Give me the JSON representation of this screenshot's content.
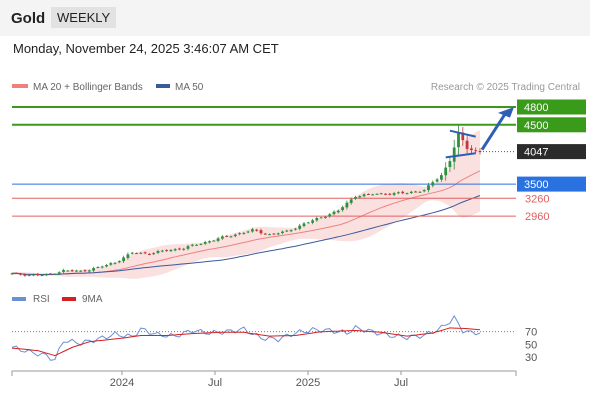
{
  "header": {
    "instrument": "Gold",
    "timeframe": "WEEKLY",
    "datetime": "Monday, November 24, 2025 3:46:07 AM CET"
  },
  "legend": {
    "ma20_label": "MA 20 + Bollinger Bands",
    "ma50_label": "MA 50",
    "credit": "Research © 2025 Trading Central",
    "rsi_label": "RSI",
    "ma9_label": "9MA"
  },
  "colors": {
    "ma20": "#f08080",
    "ma50": "#3a5a9a",
    "band_fill": "#fbe0e0",
    "up_candle": "#2f8f3f",
    "down_candle": "#c03838",
    "resistance": "#3a9a1a",
    "pivot": "#2a72e0",
    "support": "#e06060",
    "current": "#2b2b2b",
    "rsi": "#6a90d6",
    "ma9": "#d42020",
    "arrow": "#2f5fb5"
  },
  "chart_data": [
    {
      "type": "candlestick",
      "title": "Gold",
      "timeframe": "weekly",
      "x_tick_labels": [
        "2024",
        "Jul",
        "2025",
        "Jul"
      ],
      "price_range": [
        1950,
        4850
      ],
      "current_price": 4047,
      "levels": [
        {
          "value": 4800,
          "label": "4800",
          "kind": "resistance"
        },
        {
          "value": 4500,
          "label": "4500",
          "kind": "resistance"
        },
        {
          "value": 3500,
          "label": "3500",
          "kind": "pivot"
        },
        {
          "value": 3260,
          "label": "3260",
          "kind": "support"
        },
        {
          "value": 2960,
          "label": "2960",
          "kind": "support"
        }
      ],
      "series": [
        {
          "name": "MA 20 + Bollinger Bands"
        },
        {
          "name": "MA 50"
        }
      ],
      "close_path": [
        [
          0,
          1985
        ],
        [
          4,
          1970
        ],
        [
          8,
          1965
        ],
        [
          12,
          2040
        ],
        [
          16,
          2030
        ],
        [
          20,
          2090
        ],
        [
          24,
          2180
        ],
        [
          28,
          2340
        ],
        [
          32,
          2330
        ],
        [
          36,
          2380
        ],
        [
          40,
          2420
        ],
        [
          44,
          2500
        ],
        [
          48,
          2580
        ],
        [
          52,
          2650
        ],
        [
          56,
          2720
        ],
        [
          60,
          2650
        ],
        [
          64,
          2700
        ],
        [
          68,
          2830
        ],
        [
          72,
          2940
        ],
        [
          76,
          3050
        ],
        [
          80,
          3300
        ],
        [
          84,
          3330
        ],
        [
          88,
          3340
        ],
        [
          92,
          3350
        ],
        [
          96,
          3400
        ],
        [
          100,
          3650
        ],
        [
          102,
          3900
        ],
        [
          104,
          4350
        ],
        [
          106,
          4100
        ],
        [
          108,
          4060
        ],
        [
          109,
          4047
        ]
      ]
    },
    {
      "type": "line",
      "title": "RSI",
      "y_ticks": [
        30,
        50,
        70
      ],
      "series": [
        {
          "name": "RSI",
          "path": [
            [
              0,
              45
            ],
            [
              4,
              38
            ],
            [
              8,
              32
            ],
            [
              10,
              25
            ],
            [
              12,
              56
            ],
            [
              16,
              52
            ],
            [
              20,
              58
            ],
            [
              24,
              66
            ],
            [
              28,
              62
            ],
            [
              30,
              74
            ],
            [
              34,
              65
            ],
            [
              38,
              63
            ],
            [
              42,
              72
            ],
            [
              46,
              68
            ],
            [
              50,
              70
            ],
            [
              54,
              74
            ],
            [
              58,
              60
            ],
            [
              62,
              58
            ],
            [
              66,
              68
            ],
            [
              70,
              73
            ],
            [
              74,
              72
            ],
            [
              78,
              68
            ],
            [
              80,
              76
            ],
            [
              84,
              70
            ],
            [
              88,
              64
            ],
            [
              92,
              61
            ],
            [
              96,
              64
            ],
            [
              100,
              76
            ],
            [
              103,
              92
            ],
            [
              105,
              72
            ],
            [
              107,
              68
            ],
            [
              109,
              69
            ]
          ]
        },
        {
          "name": "9MA",
          "path": [
            [
              0,
              44
            ],
            [
              6,
              40
            ],
            [
              10,
              32
            ],
            [
              14,
              45
            ],
            [
              18,
              54
            ],
            [
              22,
              57
            ],
            [
              26,
              60
            ],
            [
              30,
              64
            ],
            [
              36,
              64
            ],
            [
              42,
              67
            ],
            [
              48,
              69
            ],
            [
              54,
              69
            ],
            [
              60,
              63
            ],
            [
              66,
              64
            ],
            [
              72,
              70
            ],
            [
              80,
              72
            ],
            [
              86,
              69
            ],
            [
              92,
              63
            ],
            [
              98,
              68
            ],
            [
              102,
              76
            ],
            [
              106,
              75
            ],
            [
              109,
              73
            ]
          ]
        }
      ]
    }
  ]
}
